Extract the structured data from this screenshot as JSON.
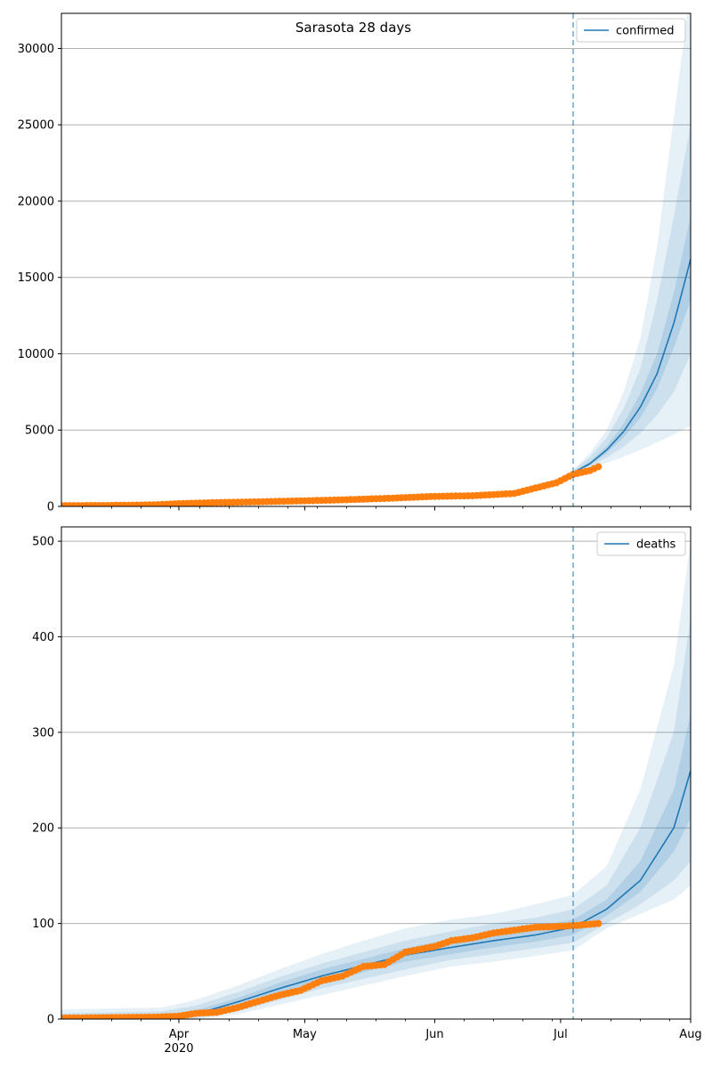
{
  "title": "Sarasota 28 days",
  "colors": {
    "model": "#1f77b4",
    "observed": "#ff7f0e",
    "band": "#1f77b4",
    "grid": "#b0b0b0",
    "cutoff": "#1f77b4"
  },
  "x_axis": {
    "start": "2020-03-04",
    "end": "2020-08-01",
    "cutoff_date": "2020-07-04",
    "ticks": [
      {
        "date": "2020-04-01",
        "label": "Apr",
        "sublabel": "2020"
      },
      {
        "date": "2020-05-01",
        "label": "May",
        "sublabel": ""
      },
      {
        "date": "2020-06-01",
        "label": "Jun",
        "sublabel": ""
      },
      {
        "date": "2020-07-01",
        "label": "Jul",
        "sublabel": ""
      },
      {
        "date": "2020-08-01",
        "label": "Aug",
        "sublabel": ""
      }
    ]
  },
  "chart_data": [
    {
      "type": "line",
      "title": "Sarasota 28 days",
      "legend": "confirmed",
      "legend_position": "top-right",
      "grid": "horizontal",
      "ylim": [
        0,
        32300
      ],
      "yticks": [
        0,
        5000,
        10000,
        15000,
        20000,
        25000,
        30000
      ],
      "model_line": {
        "x": [
          "2020-07-04",
          "2020-07-08",
          "2020-07-12",
          "2020-07-16",
          "2020-07-20",
          "2020-07-24",
          "2020-07-28",
          "2020-08-01"
        ],
        "y": [
          2200,
          2800,
          3700,
          4900,
          6500,
          8700,
          12000,
          16200
        ]
      },
      "bands": [
        {
          "x": [
            "2020-07-04",
            "2020-07-08",
            "2020-07-12",
            "2020-07-16",
            "2020-07-20",
            "2020-07-24",
            "2020-07-28",
            "2020-08-01"
          ],
          "lower": [
            2100,
            2450,
            2850,
            3250,
            3700,
            4200,
            4700,
            5300
          ],
          "upper": [
            2400,
            3500,
            5000,
            7500,
            11000,
            17000,
            25500,
            34000
          ]
        },
        {
          "x": [
            "2020-07-04",
            "2020-07-08",
            "2020-07-12",
            "2020-07-16",
            "2020-07-20",
            "2020-07-24",
            "2020-07-28",
            "2020-08-01"
          ],
          "lower": [
            2150,
            2600,
            3200,
            3900,
            4800,
            6000,
            7500,
            10000
          ],
          "upper": [
            2350,
            3250,
            4500,
            6400,
            9000,
            13500,
            19000,
            25000
          ]
        },
        {
          "x": [
            "2020-07-04",
            "2020-07-08",
            "2020-07-12",
            "2020-07-16",
            "2020-07-20",
            "2020-07-24",
            "2020-07-28",
            "2020-08-01"
          ],
          "lower": [
            2180,
            2700,
            3500,
            4500,
            5800,
            7700,
            10400,
            13500
          ],
          "upper": [
            2280,
            2950,
            3950,
            5400,
            7400,
            10000,
            14000,
            19000
          ]
        }
      ],
      "observed": {
        "x": [
          "2020-03-04",
          "2020-03-15",
          "2020-03-26",
          "2020-04-01",
          "2020-04-10",
          "2020-04-20",
          "2020-04-30",
          "2020-05-10",
          "2020-05-20",
          "2020-05-31",
          "2020-06-10",
          "2020-06-20",
          "2020-06-25",
          "2020-06-30",
          "2020-07-04",
          "2020-07-08",
          "2020-07-10"
        ],
        "y": [
          50,
          60,
          100,
          180,
          250,
          300,
          360,
          430,
          520,
          650,
          700,
          850,
          1200,
          1550,
          2100,
          2350,
          2600
        ]
      }
    },
    {
      "type": "line",
      "legend": "deaths",
      "legend_position": "top-right",
      "grid": "horizontal",
      "ylim": [
        0,
        515
      ],
      "yticks": [
        0,
        100,
        200,
        300,
        400,
        500
      ],
      "model_line": {
        "x": [
          "2020-03-04",
          "2020-03-28",
          "2020-04-05",
          "2020-04-15",
          "2020-04-25",
          "2020-05-05",
          "2020-05-15",
          "2020-05-25",
          "2020-06-05",
          "2020-06-15",
          "2020-06-25",
          "2020-07-04",
          "2020-07-12",
          "2020-07-20",
          "2020-07-28",
          "2020-08-01"
        ],
        "y": [
          0,
          0,
          5,
          18,
          32,
          45,
          56,
          67,
          75,
          82,
          88,
          96,
          115,
          145,
          200,
          260
        ]
      },
      "bands": [
        {
          "x": [
            "2020-03-04",
            "2020-03-28",
            "2020-04-05",
            "2020-04-15",
            "2020-04-25",
            "2020-05-05",
            "2020-05-15",
            "2020-05-25",
            "2020-06-05",
            "2020-06-15",
            "2020-06-25",
            "2020-07-04",
            "2020-07-12",
            "2020-07-20",
            "2020-07-28",
            "2020-08-01"
          ],
          "lower": [
            0,
            0,
            0,
            5,
            15,
            25,
            35,
            45,
            55,
            60,
            66,
            72,
            95,
            110,
            125,
            140
          ],
          "upper": [
            10,
            12,
            20,
            35,
            52,
            68,
            82,
            95,
            104,
            110,
            120,
            130,
            160,
            240,
            370,
            500
          ]
        },
        {
          "x": [
            "2020-03-04",
            "2020-03-28",
            "2020-04-05",
            "2020-04-15",
            "2020-04-25",
            "2020-05-05",
            "2020-05-15",
            "2020-05-25",
            "2020-06-05",
            "2020-06-15",
            "2020-06-25",
            "2020-07-04",
            "2020-07-12",
            "2020-07-20",
            "2020-07-28",
            "2020-08-01"
          ],
          "lower": [
            0,
            0,
            1,
            8,
            20,
            32,
            42,
            52,
            62,
            68,
            74,
            80,
            100,
            120,
            145,
            165
          ],
          "upper": [
            6,
            8,
            14,
            28,
            44,
            58,
            70,
            82,
            92,
            100,
            106,
            115,
            140,
            200,
            300,
            420
          ]
        },
        {
          "x": [
            "2020-03-04",
            "2020-03-28",
            "2020-04-05",
            "2020-04-15",
            "2020-04-25",
            "2020-05-05",
            "2020-05-15",
            "2020-05-25",
            "2020-06-05",
            "2020-06-15",
            "2020-06-25",
            "2020-07-04",
            "2020-07-12",
            "2020-07-20",
            "2020-07-28",
            "2020-08-01"
          ],
          "lower": [
            0,
            0,
            3,
            13,
            26,
            38,
            49,
            60,
            68,
            75,
            81,
            88,
            108,
            133,
            175,
            210
          ],
          "upper": [
            3,
            4,
            9,
            22,
            38,
            52,
            63,
            74,
            84,
            90,
            97,
            104,
            125,
            165,
            240,
            320
          ]
        }
      ],
      "observed": {
        "x": [
          "2020-03-04",
          "2020-03-26",
          "2020-04-01",
          "2020-04-05",
          "2020-04-10",
          "2020-04-15",
          "2020-04-18",
          "2020-04-25",
          "2020-04-30",
          "2020-05-05",
          "2020-05-10",
          "2020-05-15",
          "2020-05-20",
          "2020-05-25",
          "2020-06-01",
          "2020-06-05",
          "2020-06-10",
          "2020-06-15",
          "2020-06-20",
          "2020-06-25",
          "2020-07-01",
          "2020-07-05",
          "2020-07-10"
        ],
        "y": [
          1,
          2,
          3,
          6,
          7,
          12,
          16,
          25,
          30,
          40,
          45,
          55,
          57,
          70,
          76,
          82,
          85,
          90,
          93,
          96,
          97,
          98,
          100
        ]
      }
    }
  ]
}
